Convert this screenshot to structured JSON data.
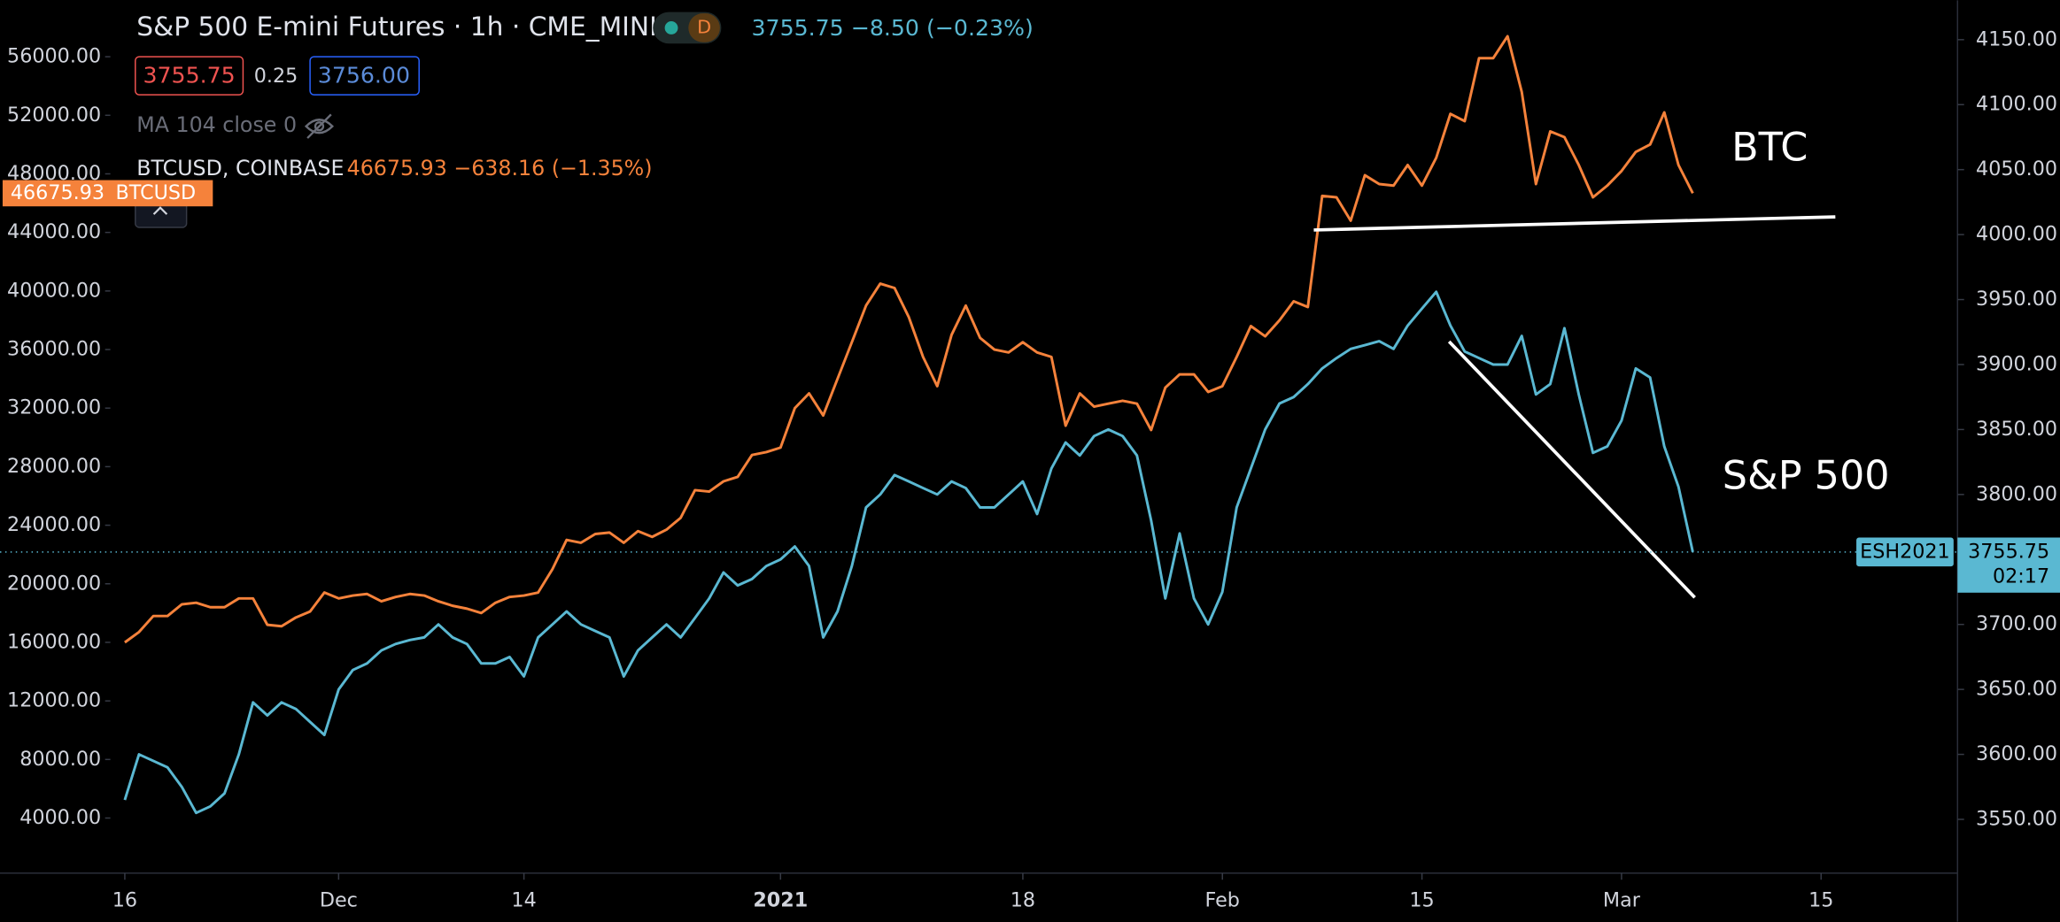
{
  "header": {
    "title": "S&P 500 E-mini Futures · 1h · CME_MINI",
    "badge": "D",
    "quote": "3755.75 −8.50 (−0.23%)",
    "bid": "3755.75",
    "spread": "0.25",
    "ask": "3756.00",
    "indicator": "MA 104 close 0",
    "btc_quote": "46675.93 −638.16 (−1.35%)",
    "btc_tag_label": "BTCUSD",
    "countdown": "02:17"
  },
  "chart_data": {
    "type": "line",
    "categories": [
      "16",
      null,
      null,
      null,
      null,
      null,
      null,
      null,
      null,
      null,
      null,
      null,
      null,
      null,
      null,
      "Dec",
      null,
      null,
      null,
      null,
      null,
      null,
      null,
      null,
      null,
      null,
      null,
      null,
      "14",
      null,
      null,
      null,
      null,
      null,
      null,
      null,
      null,
      null,
      null,
      null,
      null,
      null,
      null,
      null,
      null,
      null,
      "2021",
      null,
      null,
      null,
      null,
      null,
      null,
      null,
      null,
      null,
      null,
      null,
      null,
      null,
      null,
      null,
      null,
      "18",
      null,
      null,
      null,
      null,
      null,
      null,
      null,
      null,
      null,
      null,
      null,
      null,
      null,
      "Feb",
      null,
      null,
      null,
      null,
      null,
      null,
      null,
      null,
      null,
      null,
      null,
      null,
      null,
      "15",
      null,
      null,
      null,
      null,
      null,
      null,
      null,
      null,
      null,
      null,
      null,
      null,
      null,
      "Mar",
      null,
      null,
      null,
      null,
      null,
      null,
      null,
      null,
      null,
      null,
      null,
      null,
      null,
      "15",
      null,
      null,
      null,
      null,
      null,
      null,
      null,
      null,
      null
    ],
    "series": [
      {
        "name": "ESH2021",
        "color": "#5ab8d2",
        "axis": "y2",
        "values": [
          3565,
          3600,
          3595,
          3590,
          3575,
          3555,
          3560,
          3570,
          3600,
          3640,
          3630,
          3640,
          3635,
          3625,
          3615,
          3650,
          3665,
          3670,
          3680,
          3685,
          3688,
          3690,
          3700,
          3690,
          3685,
          3670,
          3670,
          3675,
          3660,
          3690,
          3700,
          3710,
          3700,
          3695,
          3690,
          3660,
          3680,
          3690,
          3700,
          3690,
          3705,
          3720,
          3740,
          3730,
          3735,
          3745,
          3750,
          3760,
          3745,
          3690,
          3710,
          3745,
          3790,
          3800,
          3815,
          3810,
          3805,
          3800,
          3810,
          3805,
          3790,
          3790,
          3800,
          3810,
          3785,
          3820,
          3840,
          3830,
          3845,
          3850,
          3845,
          3830,
          3780,
          3720,
          3770,
          3720,
          3700,
          3725,
          3790,
          3820,
          3850,
          3870,
          3875,
          3885,
          3897,
          3905,
          3912,
          3915,
          3918,
          3912,
          3930,
          3943,
          3956,
          3930,
          3910,
          3905,
          3900,
          3900,
          3922,
          3877,
          3885,
          3928,
          3877,
          3832,
          3837,
          3857,
          3897,
          3890,
          3837,
          3806,
          3755.75,
          null,
          null,
          null,
          null,
          null,
          null,
          null,
          null,
          null,
          null,
          null,
          null,
          null,
          null,
          null,
          null,
          null,
          null
        ]
      },
      {
        "name": "BTCUSD, COINBASE",
        "color": "#f5823b",
        "values": [
          16000,
          16700,
          17800,
          17800,
          18600,
          18700,
          18400,
          18400,
          19000,
          19000,
          17200,
          17100,
          17700,
          18100,
          19400,
          19000,
          19200,
          19300,
          18800,
          19100,
          19300,
          19200,
          18800,
          18500,
          18300,
          18000,
          18700,
          19100,
          19200,
          19400,
          21000,
          23000,
          22800,
          23400,
          23500,
          22800,
          23600,
          23200,
          23700,
          24500,
          26400,
          26300,
          27000,
          27300,
          28800,
          29000,
          29300,
          32000,
          33000,
          31500,
          34000,
          36500,
          39000,
          40500,
          40200,
          38200,
          35500,
          33500,
          37000,
          39000,
          36800,
          36000,
          35800,
          36500,
          35800,
          35500,
          30800,
          33000,
          32100,
          32300,
          32500,
          32300,
          30500,
          33400,
          34300,
          34300,
          33100,
          33500,
          35500,
          37600,
          36900,
          38000,
          39300,
          38900,
          46500,
          46400,
          44800,
          47900,
          47300,
          47200,
          48600,
          47200,
          49100,
          52100,
          51600,
          55900,
          55900,
          57400,
          53600,
          47300,
          50900,
          50500,
          48600,
          46400,
          47200,
          48200,
          49500,
          50000,
          52200,
          48600,
          46675.93,
          null,
          null,
          null,
          null,
          null,
          null,
          null,
          null,
          null,
          null,
          null,
          null,
          null,
          null,
          null,
          null,
          null,
          null
        ]
      }
    ],
    "ylim": [
      235,
      59855
    ],
    "yticks": [
      {
        "value": 4000,
        "label": "4000.00"
      },
      {
        "value": 8000,
        "label": "8000.00"
      },
      {
        "value": 12000,
        "label": "12000.00"
      },
      {
        "value": 16000,
        "label": "16000.00"
      },
      {
        "value": 20000,
        "label": "20000.00"
      },
      {
        "value": 24000,
        "label": "24000.00"
      },
      {
        "value": 28000,
        "label": "28000.00"
      },
      {
        "value": 32000,
        "label": "32000.00"
      },
      {
        "value": 36000,
        "label": "36000.00"
      },
      {
        "value": 40000,
        "label": "40000.00"
      },
      {
        "value": 44000,
        "label": "44000.00"
      },
      {
        "value": 48000,
        "label": "48000.00"
      },
      {
        "value": 52000,
        "label": "52000.00"
      },
      {
        "value": 56000,
        "label": "56000.00"
      }
    ],
    "y2lim": [
      3508.6,
      4180.3
    ],
    "y2ticks": [
      {
        "value": 3550,
        "label": "3550.00"
      },
      {
        "value": 3600,
        "label": "3600.00"
      },
      {
        "value": 3650,
        "label": "3650.00"
      },
      {
        "value": 3700,
        "label": "3700.00"
      },
      {
        "value": 3750,
        "label": "3750.00"
      },
      {
        "value": 3800,
        "label": "3800.00"
      },
      {
        "value": 3850,
        "label": "3850.00"
      },
      {
        "value": 3900,
        "label": "3900.00"
      },
      {
        "value": 3950,
        "label": "3950.00"
      },
      {
        "value": 4000,
        "label": "4000.00"
      },
      {
        "value": 4050,
        "label": "4050.00"
      },
      {
        "value": 4100,
        "label": "4100.00"
      },
      {
        "value": 4150,
        "label": "4150.00"
      }
    ],
    "annotations": [
      "BTC",
      "S&P 500"
    ]
  }
}
